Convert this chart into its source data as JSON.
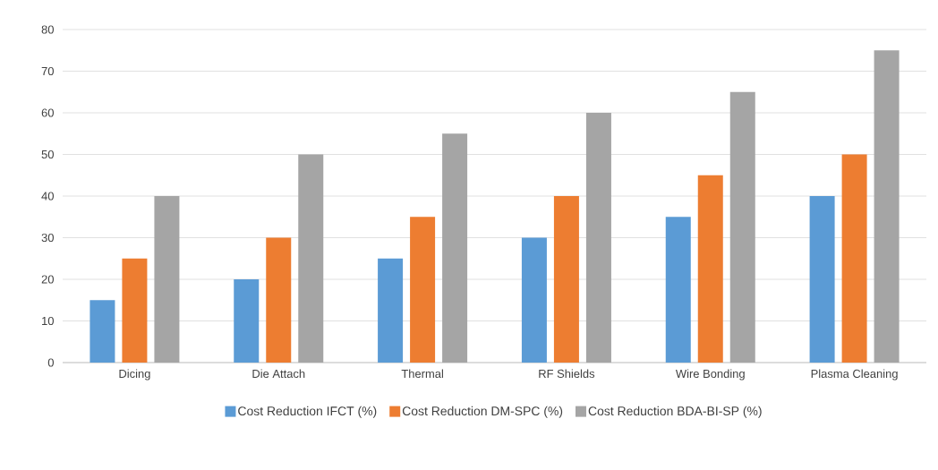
{
  "chart_data": {
    "type": "bar",
    "categories": [
      "Dicing",
      "Die Attach",
      "Thermal",
      "RF Shields",
      "Wire Bonding",
      "Plasma Cleaning"
    ],
    "series": [
      {
        "name": "Cost Reduction IFCT (%)",
        "color": "#5b9bd5",
        "values": [
          15,
          20,
          25,
          30,
          35,
          40
        ]
      },
      {
        "name": "Cost Reduction DM-SPC (%)",
        "color": "#ed7d31",
        "values": [
          25,
          30,
          35,
          40,
          45,
          50
        ]
      },
      {
        "name": "Cost Reduction BDA-BI-SP (%)",
        "color": "#a5a5a5",
        "values": [
          40,
          50,
          55,
          60,
          65,
          75
        ]
      }
    ],
    "ylim": [
      0,
      80
    ],
    "yticks": [
      0,
      10,
      20,
      30,
      40,
      50,
      60,
      70,
      80
    ],
    "grid": "y",
    "legend": "bottom"
  }
}
